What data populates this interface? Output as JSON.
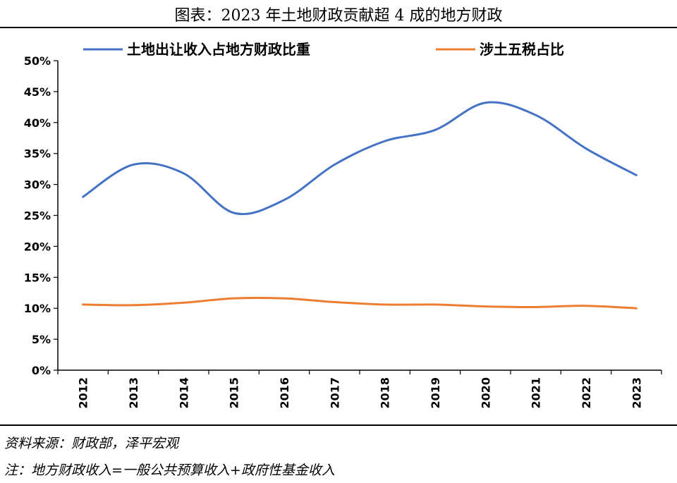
{
  "header": {
    "title": "图表：2023 年土地财政贡献超 4 成的地方财政"
  },
  "footer": {
    "source": "资料来源：财政部，泽平宏观",
    "note": "注：地方财政收入=一般公共预算收入+政府性基金收入"
  },
  "chart_data": {
    "type": "line",
    "title": "",
    "xlabel": "",
    "ylabel": "",
    "categories": [
      "2012",
      "2013",
      "2014",
      "2015",
      "2016",
      "2017",
      "2018",
      "2019",
      "2020",
      "2021",
      "2022",
      "2023"
    ],
    "y_ticks": [
      "0%",
      "5%",
      "10%",
      "15%",
      "20%",
      "25%",
      "30%",
      "35%",
      "40%",
      "45%",
      "50%"
    ],
    "ylim": [
      0,
      50
    ],
    "grid": false,
    "legend_position": "top",
    "series": [
      {
        "name": "土地出让收入占地方财政比重",
        "color": "#4472C4",
        "values": [
          28.0,
          33.2,
          31.8,
          25.4,
          27.5,
          33.2,
          37.0,
          38.8,
          43.2,
          41.2,
          35.8,
          31.5
        ]
      },
      {
        "name": "涉土五税占比",
        "color": "#ED7D31",
        "values": [
          10.6,
          10.5,
          10.9,
          11.6,
          11.6,
          11.0,
          10.6,
          10.6,
          10.3,
          10.2,
          10.4,
          10.0
        ]
      }
    ]
  }
}
